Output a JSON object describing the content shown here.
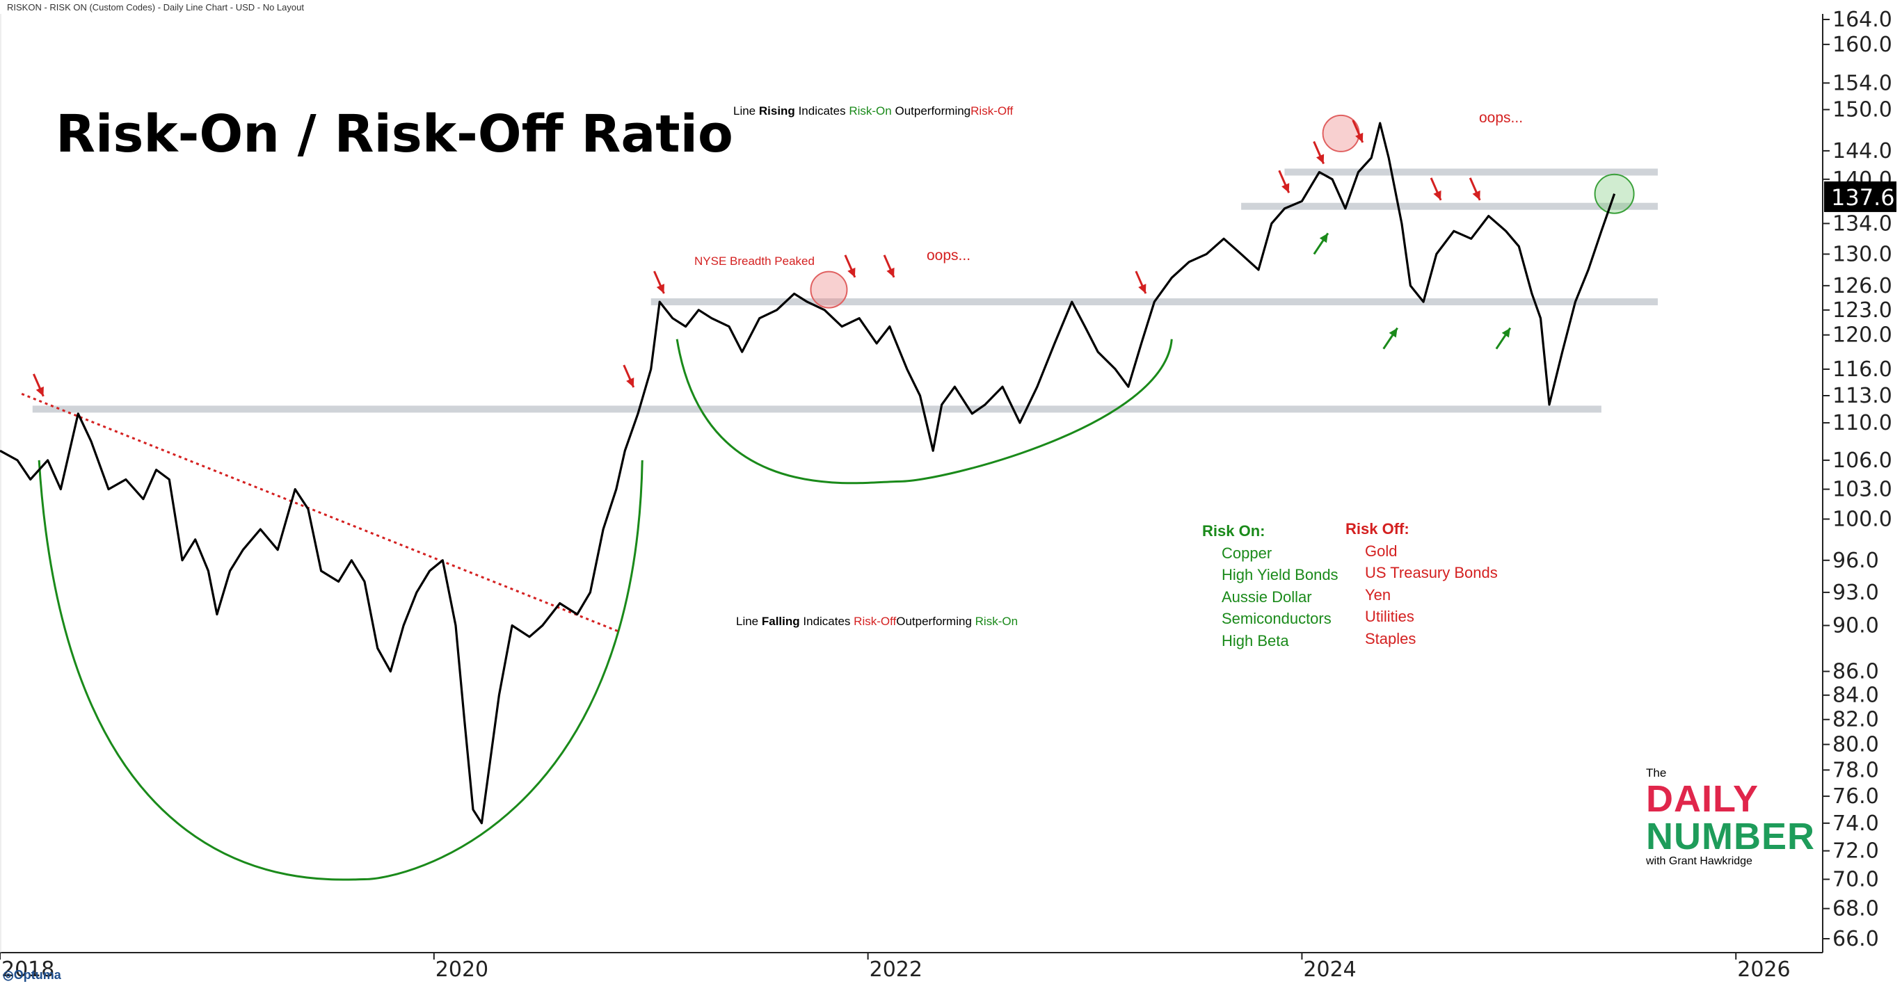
{
  "header": "RISKON - RISK ON (Custom Codes) - Daily Line Chart - USD - No Layout",
  "title": "Risk-On / Risk-Off Ratio",
  "note_top": {
    "a": "Line",
    "b": "Rising",
    "c": "Indicates",
    "d": "Risk-On",
    "e": "Outperforming",
    "f": "Risk-Off"
  },
  "note_bottom": {
    "a": "Line",
    "b": "Falling",
    "c": "Indicates",
    "d": "Risk-Off",
    "e": "Outperforming",
    "f": "Risk-On"
  },
  "annotation_nyse": "NYSE Breadth Peaked",
  "oops_label": "oops...",
  "legend": {
    "risk_on_title": "Risk On:",
    "risk_on": [
      "Copper",
      "High Yield Bonds",
      "Aussie Dollar",
      "Semiconductors",
      "High Beta"
    ],
    "risk_off_title": "Risk Off:",
    "risk_off": [
      "Gold",
      "US Treasury Bonds",
      "Yen",
      "Utilities",
      "Staples"
    ]
  },
  "logo": {
    "the": "The",
    "daily": "DAILY",
    "number": "NUMBER",
    "with": "with Grant Hawkridge"
  },
  "footer_brand": "Optuma",
  "colors": {
    "line": "#000000",
    "up": "#1a8a1a",
    "down": "#d42020",
    "band": "#cfd3d8",
    "logo_red": "#e0264b",
    "logo_green": "#1e9c5a"
  },
  "chart_data": {
    "type": "line",
    "title": "Risk-On / Risk-Off Ratio",
    "series_name": "RISKON",
    "last_value": "137.6",
    "y_ticks": [
      "164.0",
      "160.0",
      "154.0",
      "150.0",
      "144.0",
      "140.0",
      "137.6",
      "134.0",
      "130.0",
      "126.0",
      "123.0",
      "120.0",
      "116.0",
      "113.0",
      "110.0",
      "106.0",
      "103.0",
      "100.0",
      "96.0",
      "93.0",
      "90.0",
      "86.0",
      "84.0",
      "82.0",
      "80.0",
      "78.0",
      "76.0",
      "74.0",
      "72.0",
      "70.0",
      "68.0",
      "66.0"
    ],
    "x_ticks": [
      "2018",
      "2020",
      "2022",
      "2024",
      "2026"
    ],
    "ylim": [
      65,
      165
    ],
    "xlim": [
      2018.0,
      2026.4
    ],
    "yscale": "log",
    "points": [
      [
        2018.0,
        107
      ],
      [
        2018.08,
        106
      ],
      [
        2018.14,
        104
      ],
      [
        2018.22,
        106
      ],
      [
        2018.28,
        103
      ],
      [
        2018.36,
        111
      ],
      [
        2018.42,
        108
      ],
      [
        2018.5,
        103
      ],
      [
        2018.58,
        104
      ],
      [
        2018.66,
        102
      ],
      [
        2018.72,
        105
      ],
      [
        2018.78,
        104
      ],
      [
        2018.84,
        96
      ],
      [
        2018.9,
        98
      ],
      [
        2018.96,
        95
      ],
      [
        2019.0,
        91
      ],
      [
        2019.06,
        95
      ],
      [
        2019.12,
        97
      ],
      [
        2019.2,
        99
      ],
      [
        2019.28,
        97
      ],
      [
        2019.36,
        103
      ],
      [
        2019.42,
        101
      ],
      [
        2019.48,
        95
      ],
      [
        2019.56,
        94
      ],
      [
        2019.62,
        96
      ],
      [
        2019.68,
        94
      ],
      [
        2019.74,
        88
      ],
      [
        2019.8,
        86
      ],
      [
        2019.86,
        90
      ],
      [
        2019.92,
        93
      ],
      [
        2019.98,
        95
      ],
      [
        2020.04,
        96
      ],
      [
        2020.1,
        90
      ],
      [
        2020.14,
        82
      ],
      [
        2020.18,
        75
      ],
      [
        2020.22,
        74
      ],
      [
        2020.3,
        84
      ],
      [
        2020.36,
        90
      ],
      [
        2020.44,
        89
      ],
      [
        2020.5,
        90
      ],
      [
        2020.58,
        92
      ],
      [
        2020.66,
        91
      ],
      [
        2020.72,
        93
      ],
      [
        2020.78,
        99
      ],
      [
        2020.84,
        103
      ],
      [
        2020.88,
        107
      ],
      [
        2020.94,
        111
      ],
      [
        2021.0,
        116
      ],
      [
        2021.04,
        124
      ],
      [
        2021.1,
        122
      ],
      [
        2021.16,
        121
      ],
      [
        2021.22,
        123
      ],
      [
        2021.28,
        122
      ],
      [
        2021.36,
        121
      ],
      [
        2021.42,
        118
      ],
      [
        2021.5,
        122
      ],
      [
        2021.58,
        123
      ],
      [
        2021.66,
        125
      ],
      [
        2021.72,
        124
      ],
      [
        2021.8,
        123
      ],
      [
        2021.88,
        121
      ],
      [
        2021.96,
        122
      ],
      [
        2022.04,
        119
      ],
      [
        2022.1,
        121
      ],
      [
        2022.18,
        116
      ],
      [
        2022.24,
        113
      ],
      [
        2022.3,
        107
      ],
      [
        2022.34,
        112
      ],
      [
        2022.4,
        114
      ],
      [
        2022.48,
        111
      ],
      [
        2022.54,
        112
      ],
      [
        2022.62,
        114
      ],
      [
        2022.7,
        110
      ],
      [
        2022.78,
        114
      ],
      [
        2022.86,
        119
      ],
      [
        2022.94,
        124
      ],
      [
        2023.0,
        121
      ],
      [
        2023.06,
        118
      ],
      [
        2023.14,
        116
      ],
      [
        2023.2,
        114
      ],
      [
        2023.26,
        119
      ],
      [
        2023.32,
        124
      ],
      [
        2023.4,
        127
      ],
      [
        2023.48,
        129
      ],
      [
        2023.56,
        130
      ],
      [
        2023.64,
        132
      ],
      [
        2023.72,
        130
      ],
      [
        2023.8,
        128
      ],
      [
        2023.86,
        134
      ],
      [
        2023.92,
        136
      ],
      [
        2024.0,
        137
      ],
      [
        2024.08,
        141
      ],
      [
        2024.14,
        140
      ],
      [
        2024.2,
        136
      ],
      [
        2024.26,
        141
      ],
      [
        2024.32,
        143
      ],
      [
        2024.36,
        148
      ],
      [
        2024.4,
        143
      ],
      [
        2024.46,
        134
      ],
      [
        2024.5,
        126
      ],
      [
        2024.56,
        124
      ],
      [
        2024.62,
        130
      ],
      [
        2024.7,
        133
      ],
      [
        2024.78,
        132
      ],
      [
        2024.86,
        135
      ],
      [
        2024.94,
        133
      ],
      [
        2025.0,
        131
      ],
      [
        2025.06,
        125
      ],
      [
        2025.1,
        122
      ],
      [
        2025.14,
        112
      ],
      [
        2025.2,
        118
      ],
      [
        2025.26,
        124
      ],
      [
        2025.32,
        128
      ],
      [
        2025.38,
        133
      ],
      [
        2025.44,
        138
      ]
    ],
    "horizontal_levels": [
      {
        "value": 111.5,
        "from": 2018.15,
        "to": 2025.38
      },
      {
        "value": 124.0,
        "from": 2021.0,
        "to": 2025.64
      },
      {
        "value": 136.3,
        "from": 2023.72,
        "to": 2025.64
      },
      {
        "value": 141.0,
        "from": 2023.92,
        "to": 2025.64
      }
    ],
    "trendline": {
      "from": [
        2018.1,
        113.2
      ],
      "to": [
        2020.86,
        89.4
      ]
    },
    "arcs": [
      {
        "from": [
          2018.18,
          106.0
        ],
        "bottom": [
          2019.68,
          70.0
        ],
        "to": [
          2020.96,
          106.0
        ]
      },
      {
        "from": [
          2021.12,
          119.5
        ],
        "bottom": [
          2022.15,
          103.8
        ],
        "to": [
          2023.4,
          119.5
        ]
      }
    ],
    "red_arrows_at": [
      [
        2018.2,
        112
      ],
      [
        2020.92,
        113
      ],
      [
        2021.06,
        124
      ],
      [
        2021.94,
        126
      ],
      [
        2022.12,
        126
      ],
      [
        2023.28,
        124
      ],
      [
        2023.94,
        137
      ],
      [
        2024.1,
        141
      ],
      [
        2024.28,
        144
      ],
      [
        2024.64,
        136
      ],
      [
        2024.82,
        136
      ]
    ],
    "green_arrows_at": [
      [
        2024.12,
        134
      ],
      [
        2024.44,
        122
      ],
      [
        2024.96,
        122
      ]
    ],
    "circles": [
      {
        "at": [
          2021.82,
          125.5
        ],
        "color": "red"
      },
      {
        "at": [
          2024.18,
          146.5
        ],
        "color": "red"
      },
      {
        "at": [
          2025.44,
          138
        ],
        "color": "green"
      }
    ]
  }
}
